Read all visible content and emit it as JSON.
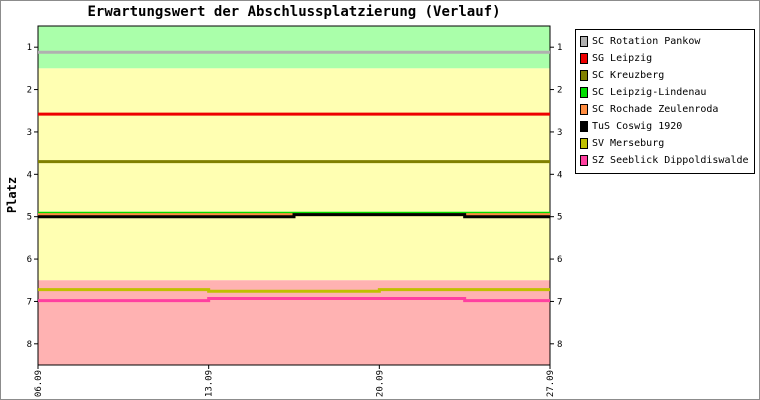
{
  "chart_data": {
    "type": "line",
    "title": "Erwartungswert der Abschlussplatzierung (Verlauf)",
    "xlabel": "",
    "ylabel": "Platz",
    "x_ticks": [
      "06.09",
      "13.09",
      "20.09",
      "27.09"
    ],
    "y_ticks": [
      "1",
      "2",
      "3",
      "4",
      "5",
      "6",
      "7",
      "8"
    ],
    "ylim": [
      8.5,
      0.5
    ],
    "y_inverted": true,
    "x": [
      "06.09",
      "10.09",
      "13.09",
      "17.09",
      "20.09",
      "24.09",
      "27.09"
    ],
    "zones": [
      {
        "from": 0.5,
        "to": 1.5,
        "color": "#aaffaa"
      },
      {
        "from": 1.5,
        "to": 6.5,
        "color": "#ffffb2"
      },
      {
        "from": 6.5,
        "to": 8.5,
        "color": "#ffb2b2"
      }
    ],
    "legend_position": "right",
    "series": [
      {
        "name": "SC Rotation Pankow",
        "color": "#b0b0b0",
        "values": [
          1.12,
          1.12,
          1.12,
          1.12,
          1.12,
          1.12,
          1.12
        ]
      },
      {
        "name": "SG Leipzig",
        "color": "#ee0000",
        "values": [
          2.58,
          2.58,
          2.58,
          2.58,
          2.58,
          2.58,
          2.58
        ]
      },
      {
        "name": "SC Kreuzberg",
        "color": "#808000",
        "values": [
          3.7,
          3.7,
          3.7,
          3.7,
          3.7,
          3.7,
          3.7
        ]
      },
      {
        "name": "SC Leipzig-Lindenau",
        "color": "#00dd00",
        "values": [
          4.92,
          4.92,
          4.92,
          4.92,
          4.92,
          4.92,
          4.92
        ]
      },
      {
        "name": "SC Rochade Zeulenroda",
        "color": "#ff8c40",
        "values": [
          4.95,
          4.95,
          4.95,
          4.95,
          4.95,
          4.95,
          4.95
        ]
      },
      {
        "name": "TuS Coswig 1920",
        "color": "#000000",
        "values": [
          5.0,
          5.0,
          5.0,
          4.95,
          4.95,
          5.0,
          5.0
        ]
      },
      {
        "name": "SV Merseburg",
        "color": "#c0c000",
        "values": [
          6.72,
          6.72,
          6.76,
          6.76,
          6.72,
          6.72,
          6.72
        ]
      },
      {
        "name": "SZ Seeblick Dippoldiswalde",
        "color": "#ff40a0",
        "values": [
          6.98,
          6.98,
          6.93,
          6.93,
          6.93,
          6.98,
          6.98
        ]
      }
    ]
  }
}
